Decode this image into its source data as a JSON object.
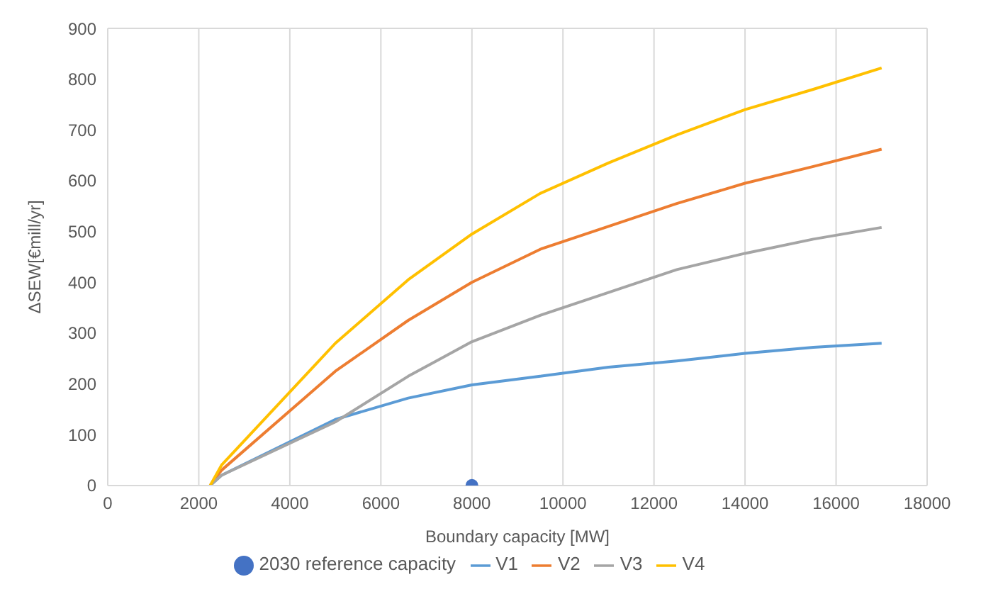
{
  "chart_data": {
    "type": "line",
    "xlabel": "Boundary capacity [MW]",
    "ylabel": "ΔSEW[€mill/yr]",
    "xlim": [
      0,
      18000
    ],
    "xticks": [
      0,
      2000,
      4000,
      6000,
      8000,
      10000,
      12000,
      14000,
      16000,
      18000
    ],
    "ylim": [
      0,
      900
    ],
    "yticks": [
      0,
      100,
      200,
      300,
      400,
      500,
      600,
      700,
      800,
      900
    ],
    "grid": true,
    "legend": "bottom",
    "marker": "none",
    "line_style": "solid",
    "series": [
      {
        "name": "2030 reference capacity",
        "type": "scatter",
        "marker": "circle",
        "color": "#4472c4",
        "x": [
          8000
        ],
        "values": [
          0
        ]
      },
      {
        "name": "V1",
        "color": "#5b9bd5",
        "x": [
          2250,
          2500,
          5000,
          6600,
          8000,
          9500,
          11000,
          12500,
          14000,
          15500,
          17000
        ],
        "values": [
          0,
          20,
          130,
          172,
          198,
          215,
          233,
          245,
          260,
          272,
          280
        ]
      },
      {
        "name": "V2",
        "color": "#ed7d31",
        "x": [
          2250,
          2500,
          5000,
          6600,
          8000,
          9500,
          11000,
          12500,
          14000,
          15500,
          17000
        ],
        "values": [
          0,
          30,
          225,
          325,
          400,
          465,
          510,
          555,
          595,
          628,
          662
        ]
      },
      {
        "name": "V3",
        "color": "#a5a5a5",
        "x": [
          2250,
          2500,
          5000,
          6600,
          8000,
          9500,
          11000,
          12500,
          14000,
          15500,
          17000
        ],
        "values": [
          0,
          20,
          125,
          215,
          283,
          335,
          380,
          425,
          457,
          485,
          508
        ]
      },
      {
        "name": "V4",
        "color": "#ffc000",
        "x": [
          2250,
          2500,
          5000,
          6600,
          8000,
          9500,
          11000,
          12500,
          14000,
          15500,
          17000
        ],
        "values": [
          0,
          40,
          280,
          405,
          495,
          575,
          635,
          690,
          740,
          780,
          822
        ]
      }
    ]
  }
}
